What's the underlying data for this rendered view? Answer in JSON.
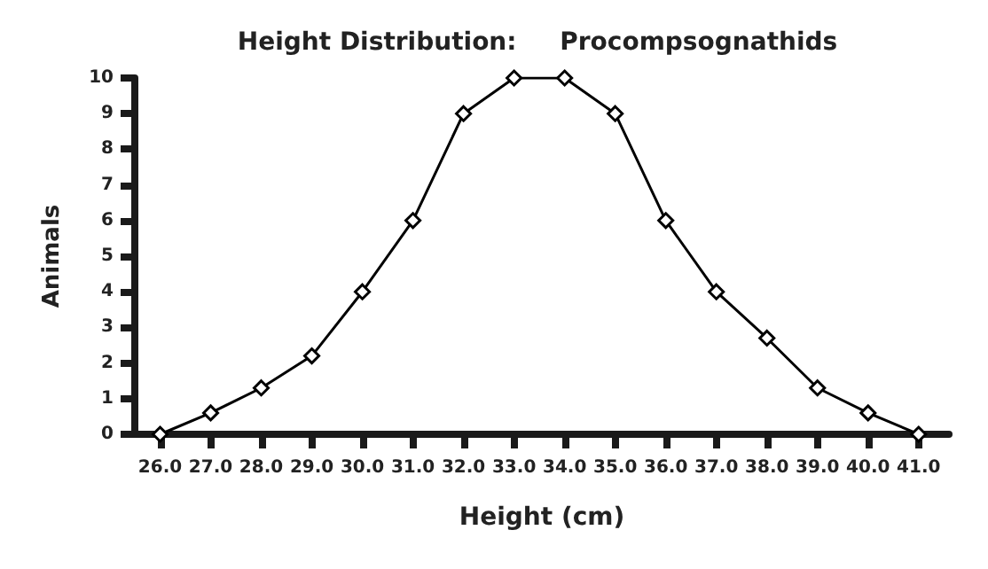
{
  "chart_data": {
    "type": "line",
    "title": "Height Distribution:     Procompsognathids",
    "xlabel": "Height (cm)",
    "ylabel": "Animals",
    "x": [
      26,
      27,
      28,
      29,
      30,
      31,
      32,
      33,
      34,
      35,
      36,
      37,
      38,
      39,
      40,
      41
    ],
    "series": [
      {
        "color": "#000000",
        "values": [
          0,
          0.6,
          1.3,
          2.2,
          4,
          6,
          9,
          10,
          10,
          9,
          6,
          4,
          2.7,
          1.3,
          0.6,
          0
        ]
      }
    ],
    "xlim": [
      25.5,
      41.6
    ],
    "ylim": [
      0,
      10
    ],
    "xticks": [
      {
        "value": 26,
        "label": "26.0"
      },
      {
        "value": 27,
        "label": "27.0"
      },
      {
        "value": 28,
        "label": "28.0"
      },
      {
        "value": 29,
        "label": "29.0"
      },
      {
        "value": 30,
        "label": "30.0"
      },
      {
        "value": 31,
        "label": "31.0"
      },
      {
        "value": 32,
        "label": "32.0"
      },
      {
        "value": 33,
        "label": "33.0"
      },
      {
        "value": 34,
        "label": "34.0"
      },
      {
        "value": 35,
        "label": "35.0"
      },
      {
        "value": 36,
        "label": "36.0"
      },
      {
        "value": 37,
        "label": "37.0"
      },
      {
        "value": 38,
        "label": "38.0"
      },
      {
        "value": 39,
        "label": "39.0"
      },
      {
        "value": 40,
        "label": "40.0"
      },
      {
        "value": 41,
        "label": "41.0"
      }
    ],
    "yticks": [
      0,
      1,
      2,
      3,
      4,
      5,
      6,
      7,
      8,
      9,
      10
    ],
    "grid": false,
    "marker": "diamond",
    "line_style": "solid"
  }
}
